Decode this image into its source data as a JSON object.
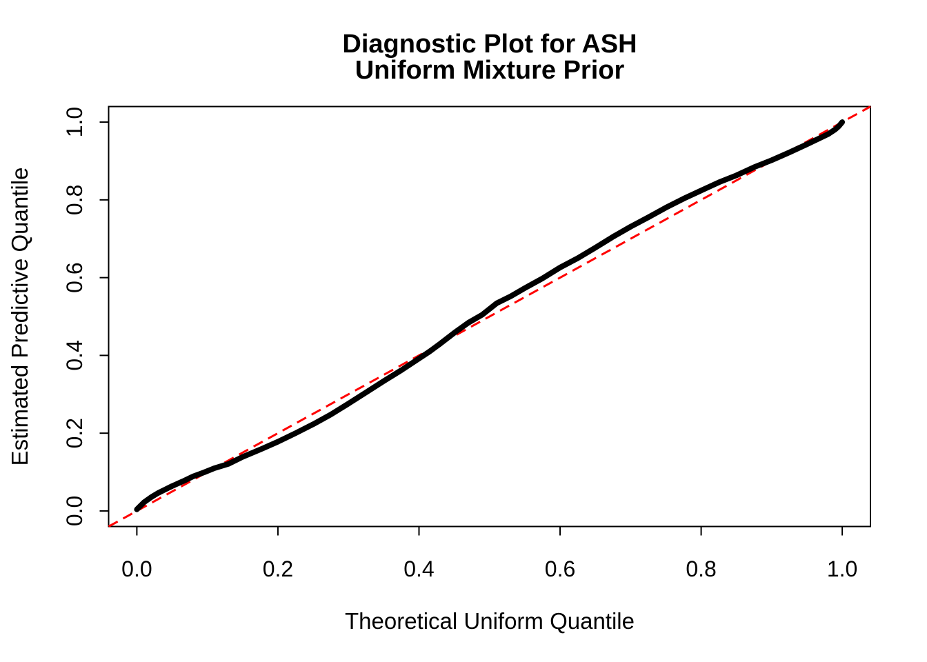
{
  "title": {
    "line1": "Diagnostic Plot for ASH",
    "line2": "Uniform Mixture Prior"
  },
  "colors": {
    "curve": "#000000",
    "reference_line": "#FF0000",
    "background": "#FFFFFF",
    "text": "#000000"
  },
  "chart_data": {
    "type": "line",
    "title": "Diagnostic Plot for ASH\nUniform Mixture Prior",
    "xlabel": "Theoretical Uniform Quantile",
    "ylabel": "Estimated Predictive Quantile",
    "xlim": [
      0,
      1
    ],
    "ylim": [
      0,
      1
    ],
    "axis_expansion": 0.04,
    "grid": false,
    "legend": false,
    "x_ticks": [
      0.0,
      0.2,
      0.4,
      0.6,
      0.8,
      1.0
    ],
    "x_tick_labels": [
      "0.0",
      "0.2",
      "0.4",
      "0.6",
      "0.8",
      "1.0"
    ],
    "y_ticks": [
      0.0,
      0.2,
      0.4,
      0.6,
      0.8,
      1.0
    ],
    "y_tick_labels": [
      "0.0",
      "0.2",
      "0.4",
      "0.6",
      "0.8",
      "1.0"
    ],
    "series": [
      {
        "name": "estimated-predictive-quantile-curve",
        "style": "solid",
        "color": "#000000",
        "stroke_width": 8,
        "points": [
          [
            0.0,
            0.004
          ],
          [
            0.005,
            0.013
          ],
          [
            0.01,
            0.022
          ],
          [
            0.02,
            0.035
          ],
          [
            0.03,
            0.046
          ],
          [
            0.04,
            0.055
          ],
          [
            0.05,
            0.064
          ],
          [
            0.065,
            0.076
          ],
          [
            0.08,
            0.089
          ],
          [
            0.095,
            0.099
          ],
          [
            0.11,
            0.11
          ],
          [
            0.13,
            0.121
          ],
          [
            0.15,
            0.139
          ],
          [
            0.175,
            0.158
          ],
          [
            0.2,
            0.178
          ],
          [
            0.225,
            0.2
          ],
          [
            0.25,
            0.223
          ],
          [
            0.275,
            0.248
          ],
          [
            0.3,
            0.276
          ],
          [
            0.325,
            0.305
          ],
          [
            0.35,
            0.334
          ],
          [
            0.375,
            0.362
          ],
          [
            0.4,
            0.392
          ],
          [
            0.415,
            0.41
          ],
          [
            0.43,
            0.43
          ],
          [
            0.45,
            0.458
          ],
          [
            0.47,
            0.484
          ],
          [
            0.49,
            0.505
          ],
          [
            0.51,
            0.534
          ],
          [
            0.53,
            0.552
          ],
          [
            0.55,
            0.573
          ],
          [
            0.575,
            0.598
          ],
          [
            0.6,
            0.626
          ],
          [
            0.625,
            0.65
          ],
          [
            0.65,
            0.677
          ],
          [
            0.675,
            0.705
          ],
          [
            0.7,
            0.731
          ],
          [
            0.725,
            0.755
          ],
          [
            0.75,
            0.78
          ],
          [
            0.775,
            0.803
          ],
          [
            0.8,
            0.824
          ],
          [
            0.825,
            0.845
          ],
          [
            0.85,
            0.863
          ],
          [
            0.875,
            0.884
          ],
          [
            0.9,
            0.902
          ],
          [
            0.925,
            0.922
          ],
          [
            0.95,
            0.943
          ],
          [
            0.965,
            0.956
          ],
          [
            0.98,
            0.969
          ],
          [
            0.99,
            0.981
          ],
          [
            0.995,
            0.989
          ],
          [
            1.0,
            1.0
          ]
        ]
      },
      {
        "name": "reference-diagonal",
        "style": "dashed",
        "color": "#FF0000",
        "stroke_width": 3,
        "points": [
          [
            -0.04,
            -0.04
          ],
          [
            1.04,
            1.04
          ]
        ]
      }
    ]
  }
}
